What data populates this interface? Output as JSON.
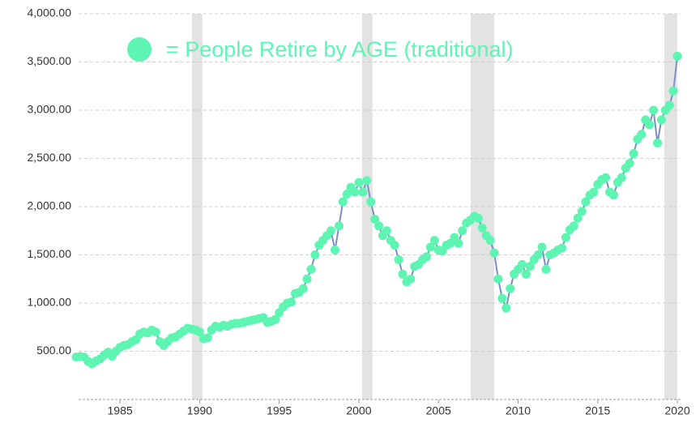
{
  "chart_data": {
    "type": "line",
    "x": [
      1982.25,
      1982.5,
      1982.75,
      1983,
      1983.25,
      1983.5,
      1983.75,
      1984,
      1984.25,
      1984.5,
      1984.75,
      1985,
      1985.25,
      1985.5,
      1985.75,
      1986,
      1986.25,
      1986.5,
      1986.75,
      1987,
      1987.25,
      1987.5,
      1987.75,
      1988,
      1988.25,
      1988.5,
      1988.75,
      1989,
      1989.25,
      1989.5,
      1989.75,
      1990,
      1990.25,
      1990.5,
      1990.75,
      1991,
      1991.25,
      1991.5,
      1991.75,
      1992,
      1992.25,
      1992.5,
      1992.75,
      1993,
      1993.25,
      1993.5,
      1993.75,
      1994,
      1994.25,
      1994.5,
      1994.75,
      1995,
      1995.25,
      1995.5,
      1995.75,
      1996,
      1996.25,
      1996.5,
      1996.75,
      1997,
      1997.25,
      1997.5,
      1997.75,
      1998,
      1998.25,
      1998.5,
      1998.75,
      1999,
      1999.25,
      1999.5,
      1999.75,
      2000,
      2000.25,
      2000.5,
      2000.75,
      2001,
      2001.25,
      2001.5,
      2001.75,
      2002,
      2002.25,
      2002.5,
      2002.75,
      2003,
      2003.25,
      2003.5,
      2003.75,
      2004,
      2004.25,
      2004.5,
      2004.75,
      2005,
      2005.25,
      2005.5,
      2005.75,
      2006,
      2006.25,
      2006.5,
      2006.75,
      2007,
      2007.25,
      2007.5,
      2007.75,
      2008,
      2008.25,
      2008.5,
      2008.75,
      2009,
      2009.25,
      2009.5,
      2009.75,
      2010,
      2010.25,
      2010.5,
      2010.75,
      2011,
      2011.25,
      2011.5,
      2011.75,
      2012,
      2012.25,
      2012.5,
      2012.75,
      2013,
      2013.25,
      2013.5,
      2013.75,
      2014,
      2014.25,
      2014.5,
      2014.75,
      2015,
      2015.25,
      2015.5,
      2015.75,
      2016,
      2016.25,
      2016.5,
      2016.75,
      2017,
      2017.25,
      2017.5,
      2017.75,
      2018,
      2018.25,
      2018.5,
      2018.75,
      2019,
      2019.25,
      2019.5,
      2019.75,
      2020
    ],
    "series": [
      {
        "name": "= People Retire by AGE (traditional)",
        "color": "#5ef5b2",
        "line_color": "#7a8ec8",
        "values": [
          440,
          445,
          440,
          395,
          370,
          400,
          420,
          460,
          490,
          450,
          500,
          540,
          560,
          570,
          600,
          620,
          680,
          700,
          690,
          720,
          700,
          600,
          560,
          600,
          640,
          650,
          680,
          710,
          740,
          730,
          720,
          700,
          630,
          640,
          720,
          760,
          750,
          770,
          760,
          780,
          790,
          790,
          800,
          810,
          820,
          830,
          840,
          850,
          800,
          810,
          830,
          900,
          960,
          1000,
          1010,
          1100,
          1110,
          1150,
          1250,
          1350,
          1500,
          1600,
          1650,
          1700,
          1750,
          1550,
          1800,
          2050,
          2130,
          2200,
          2150,
          2250,
          2150,
          2270,
          2050,
          1870,
          1800,
          1700,
          1750,
          1650,
          1600,
          1450,
          1300,
          1220,
          1250,
          1380,
          1400,
          1450,
          1480,
          1580,
          1650,
          1550,
          1540,
          1600,
          1620,
          1680,
          1620,
          1750,
          1830,
          1860,
          1900,
          1880,
          1780,
          1700,
          1650,
          1520,
          1250,
          1050,
          950,
          1150,
          1300,
          1350,
          1400,
          1300,
          1380,
          1450,
          1500,
          1580,
          1350,
          1500,
          1520,
          1550,
          1570,
          1680,
          1760,
          1800,
          1880,
          1950,
          2050,
          2120,
          2150,
          2230,
          2280,
          2300,
          2150,
          2120,
          2250,
          2300,
          2400,
          2450,
          2550,
          2700,
          2750,
          2900,
          2850,
          3000,
          2660,
          2900,
          3000,
          3050,
          3200,
          3560
        ]
      }
    ],
    "shaded_periods": [
      [
        1989.52,
        1990.18
      ],
      [
        2000.2,
        2000.86
      ],
      [
        2007.02,
        2008.5
      ],
      [
        2019.18,
        2019.99
      ]
    ],
    "xlim": [
      1982.4,
      2020.2
    ],
    "xticks": [
      1985,
      1990,
      1995,
      2000,
      2005,
      2010,
      2015,
      2020
    ],
    "ylim": [
      0,
      4000
    ],
    "yticks": [
      {
        "value": 500,
        "label": "500.00"
      },
      {
        "value": 1000,
        "label": "1,000.00"
      },
      {
        "value": 1500,
        "label": "1,500.00"
      },
      {
        "value": 2000,
        "label": "2,000.00"
      },
      {
        "value": 2500,
        "label": "2,500.00"
      },
      {
        "value": 3000,
        "label": "3,000.00"
      },
      {
        "value": 3500,
        "label": "3,500.00"
      },
      {
        "value": 4000,
        "label": "4,000.00"
      }
    ],
    "grid": true
  }
}
